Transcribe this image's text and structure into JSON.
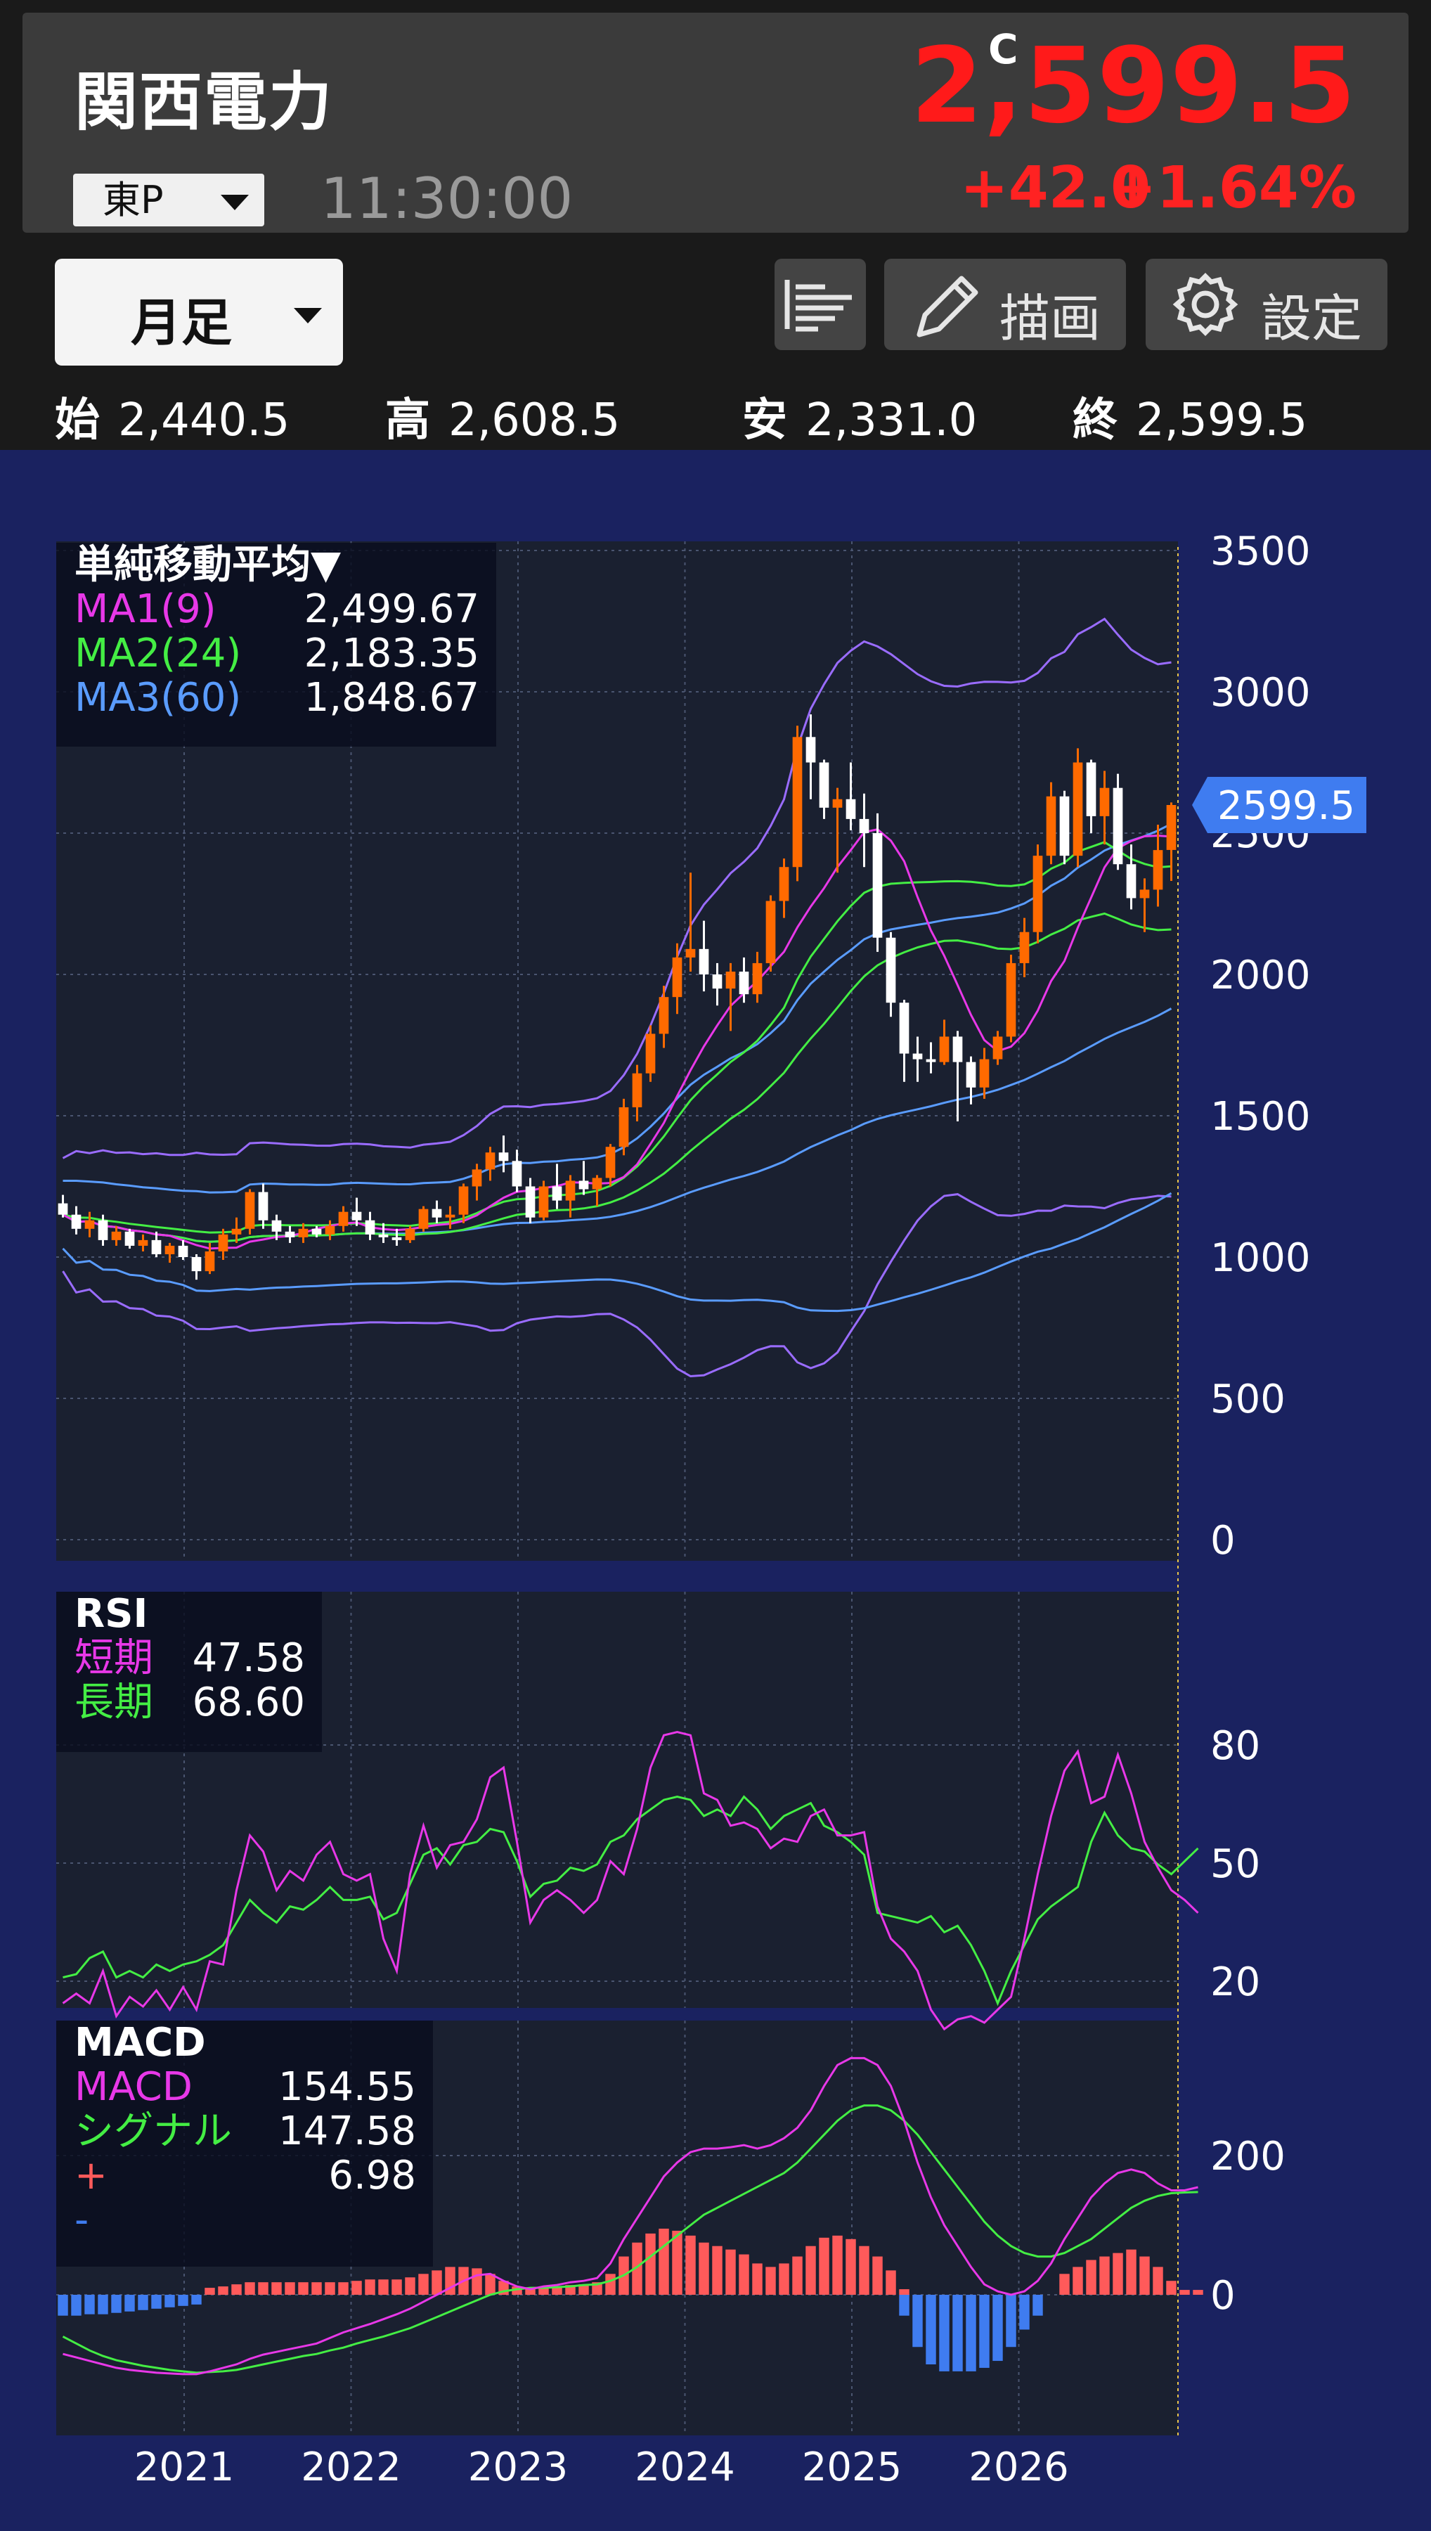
{
  "header": {
    "title": "関西電力",
    "market": "東P",
    "time": "11:30:00",
    "price_marker": "C",
    "price": "2,599.5",
    "change": "+42.0",
    "change_pct": "+1.64%"
  },
  "toolbar": {
    "period": "月足",
    "draw_label": "描画",
    "settings_label": "設定"
  },
  "ohlc": {
    "open_label": "始",
    "open": "2,440.5",
    "high_label": "高",
    "high": "2,608.5",
    "low_label": "安",
    "low": "2,331.0",
    "close_label": "終",
    "close": "2,599.5"
  },
  "colors": {
    "up": "#ff6a00",
    "down": "#ffffff",
    "ma1": "#e838e8",
    "ma2": "#44ee44",
    "ma3": "#5a9cff",
    "macd_pos": "#ff5a5a",
    "macd_neg": "#3f7cf0",
    "price_tag": "#3f7cf0"
  },
  "legends": {
    "ma": {
      "title": "単純移動平均▼",
      "rows": [
        {
          "name": "MA1(9)",
          "value": "2,499.67"
        },
        {
          "name": "MA2(24)",
          "value": "2,183.35"
        },
        {
          "name": "MA3(60)",
          "value": "1,848.67"
        }
      ]
    },
    "rsi": {
      "title": "RSI",
      "rows": [
        {
          "name": "短期",
          "value": "47.58"
        },
        {
          "name": "長期",
          "value": "68.60"
        }
      ]
    },
    "macd": {
      "title": "MACD",
      "rows": [
        {
          "name": "MACD",
          "value": "154.55"
        },
        {
          "name": "シグナル",
          "value": "147.58"
        },
        {
          "name": "+",
          "value": "6.98"
        },
        {
          "name": "-",
          "value": ""
        }
      ]
    }
  },
  "chart_data": [
    {
      "type": "candlestick",
      "x_tick_labels": [
        "2021",
        "2022",
        "2023",
        "2024",
        "2025",
        "2026"
      ],
      "y_ticks": [
        0,
        500,
        1000,
        1500,
        2000,
        2500,
        3000,
        3500
      ],
      "ylim": [
        0,
        3500
      ],
      "last_price_label": "2599.5",
      "candles": [
        [
          1190,
          1220,
          1140,
          1150
        ],
        [
          1150,
          1180,
          1080,
          1100
        ],
        [
          1100,
          1160,
          1070,
          1130
        ],
        [
          1130,
          1150,
          1040,
          1060
        ],
        [
          1060,
          1110,
          1040,
          1090
        ],
        [
          1090,
          1100,
          1030,
          1040
        ],
        [
          1040,
          1080,
          1020,
          1060
        ],
        [
          1060,
          1090,
          1000,
          1010
        ],
        [
          1010,
          1050,
          980,
          1040
        ],
        [
          1040,
          1060,
          990,
          1000
        ],
        [
          1000,
          1010,
          920,
          950
        ],
        [
          950,
          1050,
          940,
          1020
        ],
        [
          1020,
          1100,
          990,
          1080
        ],
        [
          1080,
          1140,
          1050,
          1100
        ],
        [
          1100,
          1240,
          1080,
          1230
        ],
        [
          1230,
          1260,
          1100,
          1130
        ],
        [
          1130,
          1150,
          1060,
          1090
        ],
        [
          1090,
          1110,
          1050,
          1070
        ],
        [
          1070,
          1120,
          1050,
          1100
        ],
        [
          1100,
          1110,
          1070,
          1080
        ],
        [
          1080,
          1130,
          1060,
          1110
        ],
        [
          1110,
          1180,
          1090,
          1160
        ],
        [
          1160,
          1210,
          1110,
          1130
        ],
        [
          1130,
          1160,
          1060,
          1080
        ],
        [
          1080,
          1120,
          1050,
          1070
        ],
        [
          1070,
          1100,
          1040,
          1060
        ],
        [
          1060,
          1110,
          1050,
          1100
        ],
        [
          1100,
          1180,
          1090,
          1170
        ],
        [
          1170,
          1200,
          1120,
          1140
        ],
        [
          1140,
          1180,
          1100,
          1150
        ],
        [
          1150,
          1260,
          1120,
          1250
        ],
        [
          1250,
          1330,
          1200,
          1310
        ],
        [
          1310,
          1390,
          1270,
          1370
        ],
        [
          1370,
          1430,
          1300,
          1340
        ],
        [
          1340,
          1380,
          1230,
          1250
        ],
        [
          1250,
          1280,
          1120,
          1140
        ],
        [
          1140,
          1270,
          1130,
          1250
        ],
        [
          1250,
          1330,
          1170,
          1200
        ],
        [
          1200,
          1290,
          1140,
          1270
        ],
        [
          1270,
          1340,
          1220,
          1240
        ],
        [
          1240,
          1290,
          1180,
          1280
        ],
        [
          1280,
          1400,
          1250,
          1390
        ],
        [
          1390,
          1560,
          1360,
          1530
        ],
        [
          1530,
          1680,
          1480,
          1650
        ],
        [
          1650,
          1820,
          1620,
          1790
        ],
        [
          1790,
          1960,
          1740,
          1920
        ],
        [
          1920,
          2110,
          1860,
          2060
        ],
        [
          2060,
          2360,
          2010,
          2090
        ],
        [
          2090,
          2190,
          1940,
          2000
        ],
        [
          2000,
          2040,
          1890,
          1950
        ],
        [
          1950,
          2040,
          1800,
          2010
        ],
        [
          2010,
          2060,
          1900,
          1930
        ],
        [
          1930,
          2080,
          1900,
          2040
        ],
        [
          2040,
          2280,
          2010,
          2260
        ],
        [
          2260,
          2410,
          2200,
          2380
        ],
        [
          2380,
          2880,
          2330,
          2840
        ],
        [
          2840,
          2920,
          2620,
          2750
        ],
        [
          2750,
          2760,
          2550,
          2590
        ],
        [
          2590,
          2660,
          2360,
          2620
        ],
        [
          2620,
          2750,
          2510,
          2550
        ],
        [
          2550,
          2640,
          2380,
          2500
        ],
        [
          2500,
          2570,
          2080,
          2130
        ],
        [
          2130,
          2150,
          1850,
          1900
        ],
        [
          1900,
          1910,
          1620,
          1720
        ],
        [
          1720,
          1780,
          1620,
          1700
        ],
        [
          1700,
          1760,
          1650,
          1690
        ],
        [
          1690,
          1840,
          1680,
          1780
        ],
        [
          1780,
          1800,
          1480,
          1690
        ],
        [
          1690,
          1710,
          1540,
          1600
        ],
        [
          1600,
          1740,
          1560,
          1700
        ],
        [
          1700,
          1800,
          1680,
          1780
        ],
        [
          1780,
          2070,
          1760,
          2040
        ],
        [
          2040,
          2200,
          1990,
          2150
        ],
        [
          2150,
          2460,
          2110,
          2420
        ],
        [
          2420,
          2680,
          2390,
          2630
        ],
        [
          2630,
          2650,
          2390,
          2420
        ],
        [
          2420,
          2800,
          2380,
          2750
        ],
        [
          2750,
          2760,
          2500,
          2560
        ],
        [
          2560,
          2720,
          2460,
          2660
        ],
        [
          2660,
          2710,
          2370,
          2390
        ],
        [
          2390,
          2460,
          2230,
          2270
        ],
        [
          2270,
          2340,
          2150,
          2300
        ],
        [
          2300,
          2530,
          2240,
          2440
        ],
        [
          2440.5,
          2608.5,
          2331,
          2599.5
        ]
      ]
    },
    {
      "type": "line",
      "name": "RSI",
      "y_ticks": [
        20,
        50,
        80
      ],
      "series": [
        {
          "name": "短期",
          "values": [
            20,
            23,
            20,
            30,
            16,
            22,
            19,
            24,
            18,
            25,
            18,
            33,
            32,
            55,
            72,
            67,
            55,
            61,
            58,
            66,
            70,
            60,
            58,
            60,
            40,
            30,
            60,
            75,
            62,
            69,
            70,
            77,
            90,
            93,
            70,
            45,
            52,
            55,
            52,
            48,
            52,
            64,
            60,
            74,
            93,
            103,
            104,
            103,
            85,
            83,
            75,
            76,
            74,
            68,
            71,
            70,
            78,
            80,
            72,
            72,
            73,
            50,
            40,
            36,
            30,
            18,
            12,
            15,
            16,
            14,
            18,
            22,
            40,
            60,
            78,
            92,
            98,
            82,
            84,
            97,
            85,
            70,
            62,
            55,
            52,
            48
          ]
        },
        {
          "name": "長期",
          "values": [
            28,
            29,
            34,
            36,
            28,
            30,
            28,
            32,
            30,
            32,
            33,
            35,
            38,
            45,
            52,
            48,
            45,
            50,
            49,
            52,
            56,
            52,
            52,
            53,
            46,
            48,
            57,
            66,
            68,
            63,
            69,
            70,
            74,
            73,
            64,
            53,
            57,
            58,
            62,
            61,
            63,
            70,
            72,
            77,
            80,
            83,
            84,
            83,
            78,
            80,
            78,
            84,
            80,
            74,
            78,
            80,
            82,
            75,
            73,
            70,
            66,
            48,
            47,
            46,
            45,
            47,
            42,
            44,
            38,
            30,
            20,
            30,
            38,
            46,
            50,
            53,
            56,
            70,
            79,
            72,
            68,
            67,
            63,
            60,
            64,
            68
          ]
        }
      ]
    },
    {
      "type": "bar+line",
      "name": "MACD",
      "y_ticks": [
        0,
        200
      ],
      "series": [
        {
          "name": "MACD",
          "values": [
            -85,
            -90,
            -95,
            -100,
            -105,
            -108,
            -110,
            -112,
            -113,
            -114,
            -114,
            -110,
            -105,
            -100,
            -92,
            -86,
            -82,
            -78,
            -74,
            -70,
            -62,
            -54,
            -48,
            -42,
            -35,
            -28,
            -20,
            -10,
            0,
            10,
            20,
            28,
            30,
            20,
            12,
            8,
            12,
            14,
            18,
            20,
            24,
            45,
            80,
            110,
            140,
            170,
            190,
            205,
            210,
            210,
            212,
            215,
            210,
            215,
            225,
            240,
            265,
            300,
            330,
            340,
            340,
            330,
            300,
            250,
            190,
            140,
            100,
            70,
            40,
            15,
            5,
            0,
            5,
            20,
            45,
            80,
            110,
            140,
            160,
            175,
            180,
            175,
            160,
            150,
            150,
            154.55
          ]
        },
        {
          "name": "シグナル",
          "values": [
            -60,
            -70,
            -80,
            -88,
            -94,
            -98,
            -102,
            -105,
            -108,
            -110,
            -112,
            -111,
            -110,
            -108,
            -104,
            -100,
            -96,
            -92,
            -88,
            -85,
            -80,
            -76,
            -70,
            -65,
            -60,
            -54,
            -48,
            -40,
            -32,
            -24,
            -16,
            -8,
            0,
            5,
            8,
            10,
            10,
            11,
            12,
            14,
            15,
            20,
            28,
            40,
            55,
            70,
            85,
            100,
            115,
            125,
            135,
            145,
            155,
            165,
            175,
            190,
            210,
            230,
            250,
            265,
            272,
            272,
            265,
            250,
            230,
            205,
            180,
            155,
            130,
            105,
            85,
            70,
            60,
            55,
            55,
            60,
            70,
            80,
            95,
            110,
            125,
            135,
            142,
            146,
            147,
            147.58
          ]
        },
        {
          "name": "+",
          "values": [
            0,
            0,
            0,
            0,
            0,
            0,
            0,
            0,
            0,
            0,
            0,
            10,
            12,
            15,
            18,
            18,
            18,
            18,
            18,
            18,
            18,
            18,
            20,
            22,
            22,
            22,
            25,
            30,
            35,
            40,
            40,
            38,
            30,
            20,
            12,
            8,
            10,
            12,
            14,
            15,
            18,
            30,
            55,
            75,
            88,
            95,
            92,
            85,
            75,
            70,
            65,
            58,
            45,
            40,
            45,
            55,
            70,
            82,
            85,
            80,
            70,
            55,
            35,
            8,
            0,
            0,
            0,
            0,
            0,
            0,
            0,
            0,
            0,
            0,
            0,
            30,
            40,
            50,
            55,
            60,
            65,
            55,
            40,
            20,
            6.98,
            6.98
          ]
        },
        {
          "name": "-",
          "values": [
            -30,
            -30,
            -28,
            -28,
            -26,
            -24,
            -22,
            -20,
            -18,
            -16,
            -14,
            0,
            0,
            0,
            0,
            0,
            0,
            0,
            0,
            0,
            0,
            0,
            0,
            0,
            0,
            0,
            0,
            0,
            0,
            0,
            0,
            0,
            0,
            0,
            0,
            0,
            0,
            0,
            0,
            0,
            0,
            0,
            0,
            0,
            0,
            0,
            0,
            0,
            0,
            0,
            0,
            0,
            0,
            0,
            0,
            0,
            0,
            0,
            0,
            0,
            0,
            0,
            0,
            -30,
            -75,
            -100,
            -110,
            -110,
            -110,
            -105,
            -95,
            -75,
            -50,
            -30,
            0,
            0,
            0,
            0,
            0,
            0,
            0,
            0,
            0,
            0,
            0,
            0
          ]
        }
      ]
    }
  ]
}
